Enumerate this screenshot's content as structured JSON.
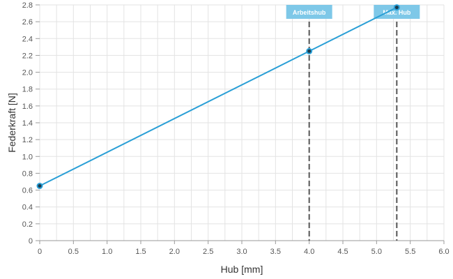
{
  "chart_data": {
    "type": "line",
    "xlabel": "Hub [mm]",
    "ylabel": "Federkraft [N]",
    "xlim": [
      0,
      6
    ],
    "ylim": [
      0,
      2.8
    ],
    "xticks": [
      "0",
      "0.5",
      "1.0",
      "1.5",
      "2.0",
      "2.5",
      "3.0",
      "3.5",
      "4.0",
      "4.5",
      "5.0",
      "5.5",
      "6.0"
    ],
    "yticks": [
      "0",
      "0.2",
      "0.4",
      "0.6",
      "0.8",
      "1.0",
      "1.2",
      "1.4",
      "1.6",
      "1.8",
      "2.0",
      "2.2",
      "2.4",
      "2.6",
      "2.8"
    ],
    "grid": true,
    "series": [
      {
        "x": [
          0,
          4.0,
          5.3
        ],
        "y": [
          0.65,
          2.25,
          2.77
        ],
        "color": "#2a9fd6"
      }
    ],
    "markers": [
      {
        "label": "Arbeitshub",
        "x": 4.0
      },
      {
        "label": "Max. Hub",
        "x": 5.3
      }
    ]
  }
}
